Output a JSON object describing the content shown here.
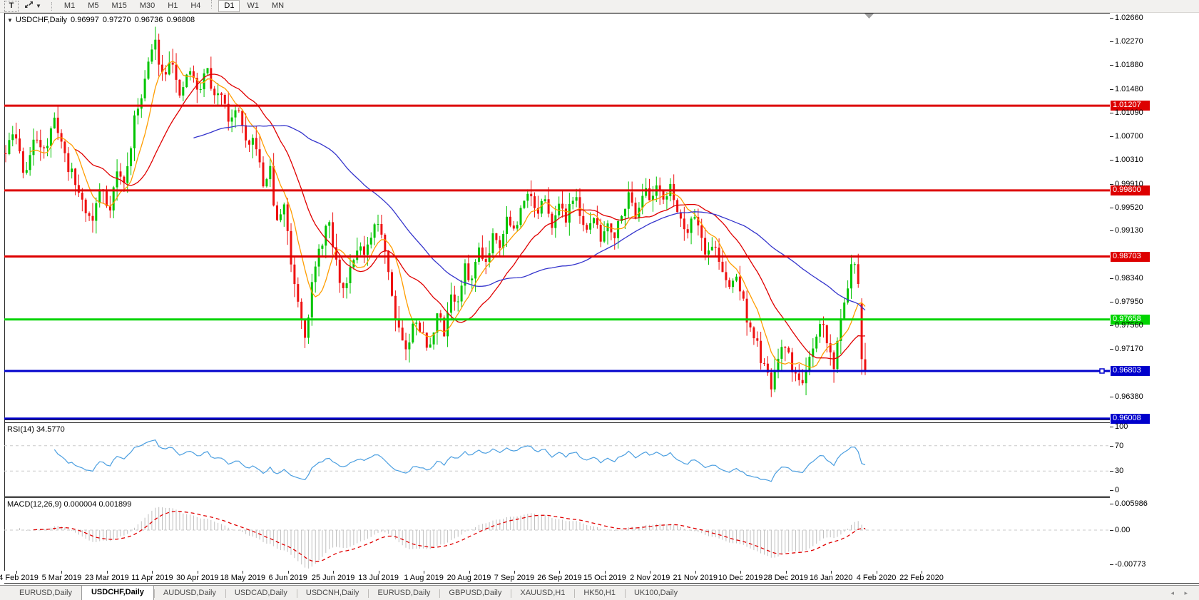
{
  "toolbar": {
    "text_tool_label": "T",
    "timeframes": [
      "M1",
      "M5",
      "M15",
      "M30",
      "H1",
      "H4",
      "D1",
      "W1",
      "MN"
    ],
    "active_timeframe": "D1"
  },
  "chart": {
    "symbol_label": "USDCHF,Daily",
    "open": "0.96997",
    "high": "0.97270",
    "low": "0.96736",
    "close": "0.96808"
  },
  "rsi": {
    "name": "RSI(14)",
    "value": "34.5770",
    "scale": [
      100,
      70,
      30,
      0
    ],
    "levels": [
      70,
      30
    ]
  },
  "macd": {
    "name": "MACD(12,26,9)",
    "value1": "0.000004",
    "value2": "0.001899",
    "scale": [
      "0.005986",
      "0.00",
      "-0.00773"
    ]
  },
  "price_axis": {
    "ticks": [
      "1.02660",
      "1.02270",
      "1.01880",
      "1.01480",
      "1.01090",
      "1.00700",
      "1.00310",
      "0.99910",
      "0.99520",
      "0.99130",
      "0.98340",
      "0.97950",
      "0.97560",
      "0.97170",
      "0.96380"
    ]
  },
  "date_axis": {
    "labels": [
      "14 Feb 2019",
      "5 Mar 2019",
      "23 Mar 2019",
      "11 Apr 2019",
      "30 Apr 2019",
      "18 May 2019",
      "6 Jun 2019",
      "25 Jun 2019",
      "13 Jul 2019",
      "1 Aug 2019",
      "20 Aug 2019",
      "7 Sep 2019",
      "26 Sep 2019",
      "15 Oct 2019",
      "2 Nov 2019",
      "21 Nov 2019",
      "10 Dec 2019",
      "28 Dec 2019",
      "16 Jan 2020",
      "4 Feb 2020",
      "22 Feb 2020"
    ]
  },
  "tabs": {
    "items": [
      "EURUSD,Daily",
      "USDCHF,Daily",
      "AUDUSD,Daily",
      "USDCAD,Daily",
      "USDCNH,Daily",
      "EURUSD,Daily",
      "GBPUSD,Daily",
      "XAUUSD,H1",
      "HK50,H1",
      "UK100,Daily"
    ],
    "active_index": 1,
    "left_arrow": "◂",
    "right_arrow": "▸"
  },
  "chart_data": {
    "type": "candlestick",
    "symbol": "USDCHF",
    "timeframe": "Daily",
    "title": "USDCHF,Daily 0.96997 0.97270 0.96736 0.96808",
    "ylim": [
      0.95998,
      1.02747
    ],
    "bars": 248,
    "seed": 11,
    "grid": false,
    "last_bar": {
      "open": 0.96997,
      "high": 0.9727,
      "low": 0.96736,
      "close": 0.96808
    },
    "penultimate_bar": {
      "open": 0.9792,
      "high": 0.9801,
      "low": 0.9674,
      "close": 0.97
    },
    "hlines": [
      {
        "label": "1.01207",
        "price": 1.01207,
        "color": "#dd0000",
        "width": 3
      },
      {
        "label": "0.99800",
        "price": 0.998,
        "color": "#dd0000",
        "width": 3
      },
      {
        "label": "0.98703",
        "price": 0.98703,
        "color": "#dd0000",
        "width": 3
      },
      {
        "label": "0.97658",
        "price": 0.97658,
        "color": "#00d400",
        "width": 3
      },
      {
        "label": "0.96803",
        "price": 0.96803,
        "color": "#0000cc",
        "width": 3,
        "marker": true
      },
      {
        "label": "0.96008",
        "price": 0.96008,
        "color": "#0000cc",
        "width": 4
      }
    ],
    "moving_averages": [
      {
        "period": 8,
        "color": "#ff9d00"
      },
      {
        "period": 21,
        "color": "#e00000"
      },
      {
        "period": 55,
        "color": "#3434cc"
      }
    ],
    "indicators": [
      {
        "name": "RSI",
        "period": 14,
        "current": 34.577,
        "levels": [
          70,
          30
        ],
        "range": [
          0,
          100
        ]
      },
      {
        "name": "MACD",
        "params": [
          12,
          26,
          9
        ],
        "current": [
          4e-06,
          0.001899
        ],
        "range": [
          -0.00773,
          0.005986
        ]
      }
    ],
    "colors": {
      "up": "#00c400",
      "down": "#ee1111",
      "rsi": "#4a9ee0",
      "levels": "#c9c9c9",
      "macd_hist": "#bfbfbf",
      "macd_signal": "#e00000",
      "shift_marker": "#a0a0a0"
    },
    "close_waypoints": [
      [
        0,
        1.004
      ],
      [
        0.01,
        1.008
      ],
      [
        0.022,
        1.0005
      ],
      [
        0.035,
        1.007
      ],
      [
        0.047,
        1.005
      ],
      [
        0.058,
        1.01
      ],
      [
        0.07,
        1.003
      ],
      [
        0.083,
        0.9985
      ],
      [
        0.1,
        0.9925
      ],
      [
        0.111,
        0.999
      ],
      [
        0.12,
        0.9945
      ],
      [
        0.129,
        1.001
      ],
      [
        0.139,
        0.999
      ],
      [
        0.149,
        1.009
      ],
      [
        0.161,
        1.016
      ],
      [
        0.173,
        1.023
      ],
      [
        0.183,
        1.017
      ],
      [
        0.193,
        1.021
      ],
      [
        0.202,
        1.0125
      ],
      [
        0.213,
        1.0185
      ],
      [
        0.224,
        1.014
      ],
      [
        0.234,
        1.0185
      ],
      [
        0.244,
        1.0125
      ],
      [
        0.252,
        1.015
      ],
      [
        0.261,
        1.009
      ],
      [
        0.271,
        1.012
      ],
      [
        0.281,
        1.004
      ],
      [
        0.29,
        1.007
      ],
      [
        0.299,
        0.9985
      ],
      [
        0.307,
        1.002
      ],
      [
        0.315,
        0.992
      ],
      [
        0.324,
        0.996
      ],
      [
        0.332,
        0.986
      ],
      [
        0.34,
        0.98
      ],
      [
        0.349,
        0.974
      ],
      [
        0.357,
        0.983
      ],
      [
        0.367,
        0.989
      ],
      [
        0.375,
        0.993
      ],
      [
        0.383,
        0.987
      ],
      [
        0.392,
        0.981
      ],
      [
        0.402,
        0.986
      ],
      [
        0.41,
        0.9895
      ],
      [
        0.418,
        0.9865
      ],
      [
        0.427,
        0.991
      ],
      [
        0.435,
        0.993
      ],
      [
        0.443,
        0.987
      ],
      [
        0.451,
        0.979
      ],
      [
        0.46,
        0.974
      ],
      [
        0.468,
        0.971
      ],
      [
        0.476,
        0.9775
      ],
      [
        0.485,
        0.974
      ],
      [
        0.493,
        0.971
      ],
      [
        0.501,
        0.978
      ],
      [
        0.51,
        0.9745
      ],
      [
        0.518,
        0.981
      ],
      [
        0.526,
        0.979
      ],
      [
        0.534,
        0.985
      ],
      [
        0.543,
        0.983
      ],
      [
        0.551,
        0.989
      ],
      [
        0.559,
        0.986
      ],
      [
        0.568,
        0.9915
      ],
      [
        0.576,
        0.989
      ],
      [
        0.584,
        0.994
      ],
      [
        0.593,
        0.9905
      ],
      [
        0.601,
        0.996
      ],
      [
        0.609,
        0.999
      ],
      [
        0.617,
        0.9935
      ],
      [
        0.626,
        0.9965
      ],
      [
        0.634,
        0.992
      ],
      [
        0.642,
        0.996
      ],
      [
        0.651,
        0.993
      ],
      [
        0.659,
        0.9975
      ],
      [
        0.667,
        0.995
      ],
      [
        0.676,
        0.9905
      ],
      [
        0.684,
        0.994
      ],
      [
        0.692,
        0.9895
      ],
      [
        0.7,
        0.993
      ],
      [
        0.709,
        0.9905
      ],
      [
        0.717,
        0.995
      ],
      [
        0.725,
        0.997
      ],
      [
        0.734,
        0.994
      ],
      [
        0.742,
        0.9985
      ],
      [
        0.75,
        0.996
      ],
      [
        0.758,
        0.9995
      ],
      [
        0.767,
        0.9965
      ],
      [
        0.775,
        0.9985
      ],
      [
        0.783,
        0.994
      ],
      [
        0.792,
        0.991
      ],
      [
        0.8,
        0.995
      ],
      [
        0.808,
        0.991
      ],
      [
        0.816,
        0.987
      ],
      [
        0.825,
        0.9895
      ],
      [
        0.833,
        0.9845
      ],
      [
        0.841,
        0.9815
      ],
      [
        0.85,
        0.984
      ],
      [
        0.858,
        0.9795
      ],
      [
        0.866,
        0.975
      ],
      [
        0.875,
        0.972
      ],
      [
        0.883,
        0.968
      ],
      [
        0.891,
        0.9655
      ],
      [
        0.899,
        0.97
      ],
      [
        0.908,
        0.9725
      ],
      [
        0.916,
        0.968
      ],
      [
        0.924,
        0.966
      ],
      [
        0.933,
        0.9685
      ],
      [
        0.941,
        0.9715
      ],
      [
        0.949,
        0.9765
      ],
      [
        0.956,
        0.973
      ],
      [
        0.963,
        0.9685
      ],
      [
        0.969,
        0.974
      ],
      [
        0.976,
        0.98
      ],
      [
        0.983,
        0.985
      ],
      [
        0.988,
        0.986
      ],
      [
        0.994,
        0.979
      ],
      [
        1,
        0.969
      ]
    ]
  }
}
